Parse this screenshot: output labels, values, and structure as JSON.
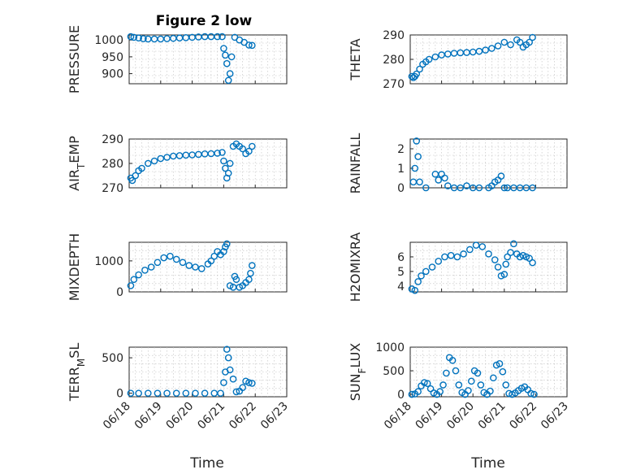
{
  "figure": {
    "title": "Figure 2 low",
    "xlabel": "Time",
    "date_ticks": [
      "06/18",
      "06/19",
      "06/20",
      "06/21",
      "06/22",
      "06/23"
    ],
    "marker_color": "#0072bd"
  },
  "chart_data": [
    {
      "type": "scatter",
      "ylabel": "PRESSURE",
      "xlim": [
        "06/18",
        "06/23"
      ],
      "ylim": [
        870,
        1015
      ],
      "yticks": [
        900,
        950,
        1000
      ],
      "x_days": [
        0.05,
        0.15,
        0.3,
        0.45,
        0.6,
        0.8,
        1.0,
        1.2,
        1.4,
        1.6,
        1.8,
        2.0,
        2.2,
        2.4,
        2.6,
        2.8,
        2.95,
        3.0,
        3.05,
        3.1,
        3.15,
        3.2,
        3.25,
        3.35,
        3.5,
        3.65,
        3.8,
        3.9
      ],
      "values": [
        1010,
        1008,
        1006,
        1004,
        1003,
        1003,
        1003,
        1004,
        1005,
        1006,
        1007,
        1008,
        1009,
        1010,
        1010,
        1010,
        1010,
        975,
        955,
        930,
        880,
        900,
        950,
        1008,
        1000,
        993,
        985,
        984
      ]
    },
    {
      "type": "scatter",
      "ylabel": "THETA",
      "xlim": [
        "06/18",
        "06/23"
      ],
      "ylim": [
        270,
        290
      ],
      "yticks": [
        270,
        280,
        290
      ],
      "x_days": [
        0.05,
        0.1,
        0.15,
        0.2,
        0.3,
        0.4,
        0.5,
        0.6,
        0.8,
        1.0,
        1.2,
        1.4,
        1.6,
        1.8,
        2.0,
        2.2,
        2.4,
        2.6,
        2.8,
        3.0,
        3.2,
        3.4,
        3.5,
        3.6,
        3.7,
        3.8,
        3.9
      ],
      "values": [
        273,
        272.5,
        273,
        274,
        276,
        278,
        279,
        280,
        281,
        281.8,
        282.2,
        282.5,
        282.7,
        282.8,
        283,
        283.3,
        283.8,
        284.5,
        285.5,
        287,
        286,
        288,
        287,
        285,
        286,
        287,
        289
      ]
    },
    {
      "type": "scatter",
      "ylabel": "AIR_TEMP",
      "xlim": [
        "06/18",
        "06/23"
      ],
      "ylim": [
        270,
        290
      ],
      "yticks": [
        270,
        280,
        290
      ],
      "x_days": [
        0.05,
        0.1,
        0.2,
        0.3,
        0.4,
        0.6,
        0.8,
        1.0,
        1.2,
        1.4,
        1.6,
        1.8,
        2.0,
        2.2,
        2.4,
        2.6,
        2.8,
        2.95,
        3.0,
        3.05,
        3.1,
        3.15,
        3.2,
        3.3,
        3.4,
        3.5,
        3.6,
        3.7,
        3.8,
        3.9
      ],
      "values": [
        274,
        273,
        275,
        277,
        278,
        280,
        281,
        282,
        282.5,
        283,
        283.2,
        283.4,
        283.5,
        283.7,
        283.9,
        284,
        284.2,
        284.5,
        281,
        278,
        274,
        276,
        280,
        287,
        288,
        287,
        286,
        284,
        285,
        287
      ]
    },
    {
      "type": "scatter",
      "ylabel": "RAINFALL",
      "xlim": [
        "06/18",
        "06/23"
      ],
      "ylim": [
        0,
        2.5
      ],
      "yticks": [
        0,
        1,
        2
      ],
      "x_days": [
        0.1,
        0.15,
        0.2,
        0.25,
        0.3,
        0.5,
        0.8,
        0.9,
        1.0,
        1.1,
        1.2,
        1.4,
        1.6,
        1.8,
        2.0,
        2.2,
        2.5,
        2.6,
        2.7,
        2.8,
        2.9,
        3.0,
        3.1,
        3.3,
        3.5,
        3.7,
        3.9
      ],
      "values": [
        0.3,
        1.0,
        2.4,
        1.6,
        0.3,
        0.0,
        0.7,
        0.4,
        0.7,
        0.5,
        0.1,
        0.0,
        0.0,
        0.1,
        0.0,
        0.0,
        0.0,
        0.1,
        0.3,
        0.4,
        0.6,
        0.0,
        0.0,
        0.0,
        0.0,
        0.0,
        0.0
      ]
    },
    {
      "type": "scatter",
      "ylabel": "MIXDEPTH",
      "xlim": [
        "06/18",
        "06/23"
      ],
      "ylim": [
        0,
        1600
      ],
      "yticks": [
        0,
        1000
      ],
      "x_days": [
        0.05,
        0.15,
        0.3,
        0.5,
        0.7,
        0.9,
        1.1,
        1.3,
        1.5,
        1.7,
        1.9,
        2.1,
        2.3,
        2.5,
        2.6,
        2.7,
        2.8,
        2.9,
        3.0,
        3.05,
        3.1,
        3.2,
        3.3,
        3.35,
        3.4,
        3.5,
        3.6,
        3.7,
        3.8,
        3.85,
        3.9
      ],
      "values": [
        200,
        400,
        550,
        700,
        800,
        950,
        1100,
        1150,
        1050,
        950,
        850,
        800,
        750,
        900,
        1000,
        1150,
        1300,
        1200,
        1300,
        1450,
        1550,
        200,
        150,
        500,
        400,
        150,
        200,
        300,
        400,
        600,
        850
      ]
    },
    {
      "type": "scatter",
      "ylabel": "H2OMIXRA",
      "xlim": [
        "06/18",
        "06/23"
      ],
      "ylim": [
        3.6,
        7
      ],
      "yticks": [
        4,
        5,
        6
      ],
      "x_days": [
        0.05,
        0.15,
        0.25,
        0.35,
        0.5,
        0.7,
        0.9,
        1.1,
        1.3,
        1.5,
        1.7,
        1.9,
        2.1,
        2.3,
        2.5,
        2.7,
        2.8,
        2.9,
        3.0,
        3.05,
        3.1,
        3.2,
        3.3,
        3.4,
        3.5,
        3.6,
        3.7,
        3.8,
        3.9
      ],
      "values": [
        3.8,
        3.7,
        4.3,
        4.7,
        5.0,
        5.3,
        5.7,
        6.0,
        6.1,
        6.0,
        6.2,
        6.5,
        6.8,
        6.7,
        6.2,
        5.8,
        5.3,
        4.7,
        4.8,
        5.5,
        6.0,
        6.3,
        6.9,
        6.2,
        6.0,
        6.1,
        6.0,
        5.9,
        5.6
      ]
    },
    {
      "type": "scatter",
      "ylabel": "TERR_MSL",
      "xlim": [
        "06/18",
        "06/23"
      ],
      "ylim": [
        -50,
        650
      ],
      "yticks": [
        0,
        500
      ],
      "x_days": [
        0.05,
        0.3,
        0.6,
        0.9,
        1.2,
        1.5,
        1.8,
        2.1,
        2.4,
        2.7,
        2.9,
        3.0,
        3.05,
        3.1,
        3.15,
        3.2,
        3.3,
        3.4,
        3.5,
        3.6,
        3.7,
        3.8,
        3.9
      ],
      "values": [
        0,
        0,
        0,
        0,
        0,
        0,
        0,
        0,
        0,
        0,
        0,
        150,
        300,
        620,
        500,
        330,
        200,
        20,
        30,
        80,
        170,
        150,
        140
      ]
    },
    {
      "type": "scatter",
      "ylabel": "SUN_FLUX",
      "xlim": [
        "06/18",
        "06/23"
      ],
      "ylim": [
        -50,
        1000
      ],
      "yticks": [
        0,
        500,
        1000
      ],
      "x_days": [
        0.05,
        0.15,
        0.25,
        0.35,
        0.45,
        0.55,
        0.65,
        0.75,
        0.85,
        0.95,
        1.05,
        1.15,
        1.25,
        1.35,
        1.45,
        1.55,
        1.65,
        1.75,
        1.85,
        1.95,
        2.05,
        2.15,
        2.25,
        2.35,
        2.45,
        2.55,
        2.65,
        2.75,
        2.85,
        2.95,
        3.05,
        3.15,
        3.25,
        3.35,
        3.45,
        3.55,
        3.65,
        3.75,
        3.85,
        3.95
      ],
      "values": [
        0,
        10,
        60,
        180,
        250,
        230,
        120,
        30,
        0,
        60,
        200,
        450,
        780,
        720,
        500,
        200,
        40,
        0,
        80,
        280,
        500,
        450,
        200,
        40,
        0,
        70,
        350,
        620,
        650,
        480,
        200,
        20,
        0,
        30,
        80,
        130,
        160,
        100,
        20,
        0
      ]
    }
  ]
}
